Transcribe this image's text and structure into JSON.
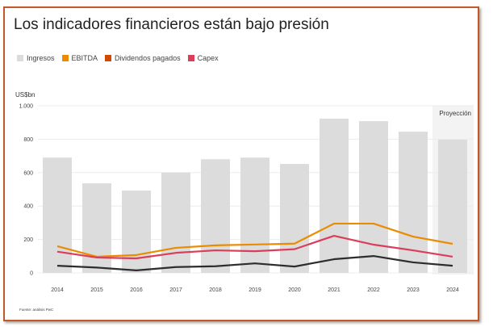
{
  "chart_data": {
    "type": "bar",
    "title": "Los indicadores financieros están bajo presión",
    "ylabel": "US$bn",
    "xlabel": "",
    "ylim": [
      0,
      1000
    ],
    "yticks": [
      0,
      200,
      400,
      600,
      800,
      1000
    ],
    "ytick_labels": [
      "0",
      "200",
      "400",
      "600",
      "800",
      "1.000"
    ],
    "grid": true,
    "legend_position": "top-left",
    "categories": [
      "2014",
      "2015",
      "2016",
      "2017",
      "2018",
      "2019",
      "2020",
      "2021",
      "2022",
      "2023",
      "2024"
    ],
    "projection": {
      "label": "Proyección",
      "from_category": "2024"
    },
    "series": [
      {
        "name": "Ingresos",
        "kind": "bar",
        "color": "#dcdcdc",
        "values": [
          690,
          536,
          493,
          600,
          680,
          690,
          652,
          923,
          908,
          845,
          797
        ]
      },
      {
        "name": "EBITDA",
        "kind": "line",
        "color": "#eb8c00",
        "values": [
          160,
          97,
          107,
          150,
          165,
          170,
          175,
          295,
          295,
          217,
          174
        ]
      },
      {
        "name": "Dividendos pagados",
        "kind": "line",
        "color": "#d04a02",
        "line_color": "#2d2d2d",
        "values": [
          43,
          32,
          15,
          35,
          40,
          57,
          38,
          82,
          101,
          63,
          43
        ]
      },
      {
        "name": "Capex",
        "kind": "line",
        "color": "#db3e5a",
        "values": [
          127,
          92,
          87,
          120,
          135,
          130,
          142,
          222,
          169,
          135,
          97
        ]
      }
    ],
    "source": "Fuente: análisis PwC"
  }
}
